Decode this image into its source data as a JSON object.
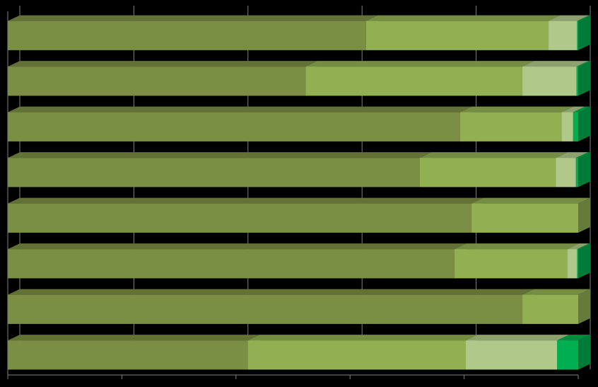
{
  "chart_data": {
    "type": "stacked-bar-3d",
    "orientation": "horizontal",
    "categories": [
      null,
      null,
      null,
      null,
      null,
      null,
      null,
      null
    ],
    "xlim": [
      0,
      100
    ],
    "xticks": [
      0,
      20,
      40,
      60,
      80,
      100
    ],
    "grid": true,
    "series": [
      {
        "color": "#7a8f43",
        "values": [
          62.8,
          52.2,
          79.3,
          72.2,
          81.3,
          78.3,
          90.2,
          42.1
        ]
      },
      {
        "color": "#92b052",
        "values": [
          32.0,
          38.0,
          17.8,
          23.9,
          18.7,
          19.8,
          9.8,
          38.2
        ]
      },
      {
        "color": "#b0c98a",
        "values": [
          5.0,
          9.5,
          2.0,
          3.5,
          0,
          1.7,
          0,
          16.0
        ]
      },
      {
        "color": "#00b050",
        "values": [
          0.2,
          0.3,
          0.9,
          0.4,
          0,
          0.2,
          0,
          3.7
        ]
      }
    ]
  }
}
